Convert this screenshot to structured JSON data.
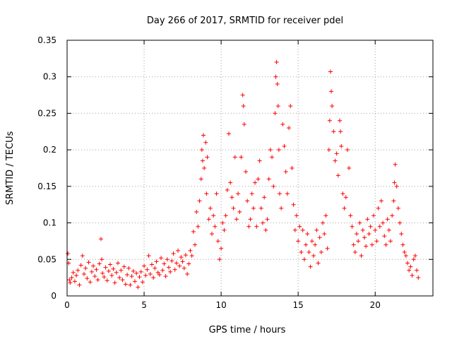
{
  "chart_data": {
    "type": "scatter",
    "title": "Day 266 of 2017, SRMTID for receiver pdel",
    "xlabel": "GPS time / hours",
    "ylabel": "SRMTID / TECUs",
    "xlim": [
      0,
      23.75
    ],
    "ylim": [
      0,
      0.35
    ],
    "grid": true,
    "x_ticks": [
      0,
      5,
      10,
      15,
      20
    ],
    "x_tick_labels": [
      "0",
      "5",
      "10",
      "15",
      "20"
    ],
    "y_ticks": [
      0,
      0.05,
      0.1,
      0.15,
      0.2,
      0.25,
      0.3,
      0.35
    ],
    "y_tick_labels": [
      "0",
      "0.05",
      "0.1",
      "0.15",
      "0.2",
      "0.25",
      "0.3",
      "0.35"
    ],
    "marker": "+",
    "colors": {
      "points": "#ff0000",
      "grid": "#a0a0a0",
      "axes": "#000000",
      "background": "#ffffff"
    },
    "series": [
      {
        "name": "SRMTID",
        "points": [
          [
            0.05,
            0.058
          ],
          [
            0.1,
            0.045
          ],
          [
            0.15,
            0.022
          ],
          [
            0.2,
            0.018
          ],
          [
            0.3,
            0.025
          ],
          [
            0.4,
            0.032
          ],
          [
            0.5,
            0.02
          ],
          [
            0.6,
            0.028
          ],
          [
            0.7,
            0.035
          ],
          [
            0.8,
            0.015
          ],
          [
            0.9,
            0.042
          ],
          [
            1.0,
            0.055
          ],
          [
            1.1,
            0.03
          ],
          [
            1.2,
            0.038
          ],
          [
            1.3,
            0.024
          ],
          [
            1.4,
            0.046
          ],
          [
            1.5,
            0.019
          ],
          [
            1.6,
            0.033
          ],
          [
            1.7,
            0.041
          ],
          [
            1.8,
            0.027
          ],
          [
            1.9,
            0.036
          ],
          [
            2.0,
            0.022
          ],
          [
            2.1,
            0.044
          ],
          [
            2.2,
            0.078
          ],
          [
            2.25,
            0.05
          ],
          [
            2.3,
            0.031
          ],
          [
            2.4,
            0.026
          ],
          [
            2.5,
            0.039
          ],
          [
            2.6,
            0.021
          ],
          [
            2.7,
            0.034
          ],
          [
            2.8,
            0.043
          ],
          [
            2.9,
            0.028
          ],
          [
            3.0,
            0.037
          ],
          [
            3.1,
            0.018
          ],
          [
            3.2,
            0.032
          ],
          [
            3.3,
            0.045
          ],
          [
            3.4,
            0.025
          ],
          [
            3.5,
            0.035
          ],
          [
            3.6,
            0.022
          ],
          [
            3.7,
            0.04
          ],
          [
            3.8,
            0.016
          ],
          [
            3.9,
            0.029
          ],
          [
            4.0,
            0.038
          ],
          [
            4.1,
            0.015
          ],
          [
            4.2,
            0.027
          ],
          [
            4.3,
            0.034
          ],
          [
            4.4,
            0.02
          ],
          [
            4.5,
            0.031
          ],
          [
            4.6,
            0.012
          ],
          [
            4.7,
            0.026
          ],
          [
            4.8,
            0.033
          ],
          [
            4.9,
            0.019
          ],
          [
            5.0,
            0.041
          ],
          [
            5.1,
            0.028
          ],
          [
            5.2,
            0.036
          ],
          [
            5.3,
            0.055
          ],
          [
            5.4,
            0.03
          ],
          [
            5.5,
            0.043
          ],
          [
            5.6,
            0.025
          ],
          [
            5.7,
            0.038
          ],
          [
            5.8,
            0.047
          ],
          [
            5.9,
            0.032
          ],
          [
            6.0,
            0.029
          ],
          [
            6.1,
            0.052
          ],
          [
            6.2,
            0.035
          ],
          [
            6.3,
            0.044
          ],
          [
            6.4,
            0.027
          ],
          [
            6.5,
            0.05
          ],
          [
            6.6,
            0.039
          ],
          [
            6.7,
            0.033
          ],
          [
            6.8,
            0.048
          ],
          [
            6.9,
            0.058
          ],
          [
            7.0,
            0.036
          ],
          [
            7.1,
            0.045
          ],
          [
            7.2,
            0.062
          ],
          [
            7.3,
            0.041
          ],
          [
            7.4,
            0.053
          ],
          [
            7.5,
            0.047
          ],
          [
            7.6,
            0.038
          ],
          [
            7.7,
            0.056
          ],
          [
            7.8,
            0.03
          ],
          [
            7.9,
            0.044
          ],
          [
            8.0,
            0.062
          ],
          [
            8.1,
            0.055
          ],
          [
            8.2,
            0.088
          ],
          [
            8.3,
            0.07
          ],
          [
            8.4,
            0.115
          ],
          [
            8.5,
            0.095
          ],
          [
            8.6,
            0.13
          ],
          [
            8.7,
            0.16
          ],
          [
            8.75,
            0.2
          ],
          [
            8.8,
            0.185
          ],
          [
            8.85,
            0.22
          ],
          [
            8.9,
            0.175
          ],
          [
            9.0,
            0.21
          ],
          [
            9.05,
            0.14
          ],
          [
            9.1,
            0.19
          ],
          [
            9.2,
            0.105
          ],
          [
            9.3,
            0.12
          ],
          [
            9.4,
            0.085
          ],
          [
            9.5,
            0.11
          ],
          [
            9.6,
            0.095
          ],
          [
            9.7,
            0.14
          ],
          [
            9.8,
            0.075
          ],
          [
            9.9,
            0.05
          ],
          [
            10.0,
            0.065
          ],
          [
            10.1,
            0.1
          ],
          [
            10.2,
            0.09
          ],
          [
            10.3,
            0.11
          ],
          [
            10.4,
            0.145
          ],
          [
            10.5,
            0.222
          ],
          [
            10.6,
            0.155
          ],
          [
            10.7,
            0.135
          ],
          [
            10.8,
            0.12
          ],
          [
            10.9,
            0.19
          ],
          [
            11.0,
            0.105
          ],
          [
            11.1,
            0.14
          ],
          [
            11.2,
            0.115
          ],
          [
            11.3,
            0.19
          ],
          [
            11.4,
            0.275
          ],
          [
            11.45,
            0.26
          ],
          [
            11.5,
            0.235
          ],
          [
            11.6,
            0.17
          ],
          [
            11.7,
            0.13
          ],
          [
            11.8,
            0.095
          ],
          [
            11.9,
            0.105
          ],
          [
            12.0,
            0.14
          ],
          [
            12.1,
            0.12
          ],
          [
            12.2,
            0.155
          ],
          [
            12.3,
            0.095
          ],
          [
            12.4,
            0.16
          ],
          [
            12.5,
            0.185
          ],
          [
            12.6,
            0.12
          ],
          [
            12.7,
            0.1
          ],
          [
            12.8,
            0.135
          ],
          [
            12.9,
            0.09
          ],
          [
            13.0,
            0.105
          ],
          [
            13.1,
            0.16
          ],
          [
            13.2,
            0.2
          ],
          [
            13.3,
            0.19
          ],
          [
            13.4,
            0.15
          ],
          [
            13.5,
            0.25
          ],
          [
            13.55,
            0.3
          ],
          [
            13.6,
            0.32
          ],
          [
            13.65,
            0.29
          ],
          [
            13.7,
            0.26
          ],
          [
            13.75,
            0.2
          ],
          [
            13.8,
            0.14
          ],
          [
            13.9,
            0.12
          ],
          [
            14.0,
            0.235
          ],
          [
            14.1,
            0.205
          ],
          [
            14.2,
            0.17
          ],
          [
            14.3,
            0.14
          ],
          [
            14.4,
            0.23
          ],
          [
            14.5,
            0.26
          ],
          [
            14.6,
            0.175
          ],
          [
            14.7,
            0.125
          ],
          [
            14.8,
            0.09
          ],
          [
            14.9,
            0.11
          ],
          [
            15.0,
            0.075
          ],
          [
            15.1,
            0.095
          ],
          [
            15.2,
            0.06
          ],
          [
            15.3,
            0.09
          ],
          [
            15.4,
            0.05
          ],
          [
            15.5,
            0.07
          ],
          [
            15.6,
            0.085
          ],
          [
            15.7,
            0.06
          ],
          [
            15.8,
            0.04
          ],
          [
            15.9,
            0.075
          ],
          [
            16.0,
            0.055
          ],
          [
            16.1,
            0.07
          ],
          [
            16.2,
            0.09
          ],
          [
            16.3,
            0.045
          ],
          [
            16.4,
            0.08
          ],
          [
            16.5,
            0.06
          ],
          [
            16.6,
            0.1
          ],
          [
            16.7,
            0.085
          ],
          [
            16.8,
            0.11
          ],
          [
            16.9,
            0.065
          ],
          [
            17.0,
            0.2
          ],
          [
            17.05,
            0.24
          ],
          [
            17.1,
            0.307
          ],
          [
            17.15,
            0.28
          ],
          [
            17.2,
            0.26
          ],
          [
            17.3,
            0.225
          ],
          [
            17.4,
            0.185
          ],
          [
            17.5,
            0.195
          ],
          [
            17.6,
            0.165
          ],
          [
            17.7,
            0.24
          ],
          [
            17.75,
            0.225
          ],
          [
            17.8,
            0.205
          ],
          [
            17.9,
            0.14
          ],
          [
            18.0,
            0.12
          ],
          [
            18.1,
            0.135
          ],
          [
            18.2,
            0.2
          ],
          [
            18.3,
            0.175
          ],
          [
            18.4,
            0.11
          ],
          [
            18.5,
            0.095
          ],
          [
            18.6,
            0.07
          ],
          [
            18.7,
            0.06
          ],
          [
            18.8,
            0.085
          ],
          [
            18.9,
            0.075
          ],
          [
            19.0,
            0.1
          ],
          [
            19.1,
            0.055
          ],
          [
            19.2,
            0.09
          ],
          [
            19.3,
            0.08
          ],
          [
            19.4,
            0.068
          ],
          [
            19.5,
            0.105
          ],
          [
            19.6,
            0.085
          ],
          [
            19.7,
            0.095
          ],
          [
            19.8,
            0.07
          ],
          [
            19.9,
            0.11
          ],
          [
            20.0,
            0.09
          ],
          [
            20.1,
            0.075
          ],
          [
            20.2,
            0.12
          ],
          [
            20.3,
            0.095
          ],
          [
            20.4,
            0.13
          ],
          [
            20.5,
            0.1
          ],
          [
            20.6,
            0.082
          ],
          [
            20.7,
            0.07
          ],
          [
            20.8,
            0.105
          ],
          [
            20.9,
            0.09
          ],
          [
            21.0,
            0.075
          ],
          [
            21.1,
            0.11
          ],
          [
            21.2,
            0.13
          ],
          [
            21.25,
            0.155
          ],
          [
            21.3,
            0.18
          ],
          [
            21.4,
            0.15
          ],
          [
            21.5,
            0.12
          ],
          [
            21.6,
            0.1
          ],
          [
            21.7,
            0.085
          ],
          [
            21.8,
            0.07
          ],
          [
            21.9,
            0.06
          ],
          [
            22.0,
            0.055
          ],
          [
            22.1,
            0.045
          ],
          [
            22.2,
            0.035
          ],
          [
            22.3,
            0.04
          ],
          [
            22.4,
            0.028
          ],
          [
            22.5,
            0.05
          ],
          [
            22.6,
            0.055
          ],
          [
            22.7,
            0.035
          ],
          [
            22.8,
            0.025
          ]
        ]
      }
    ]
  }
}
